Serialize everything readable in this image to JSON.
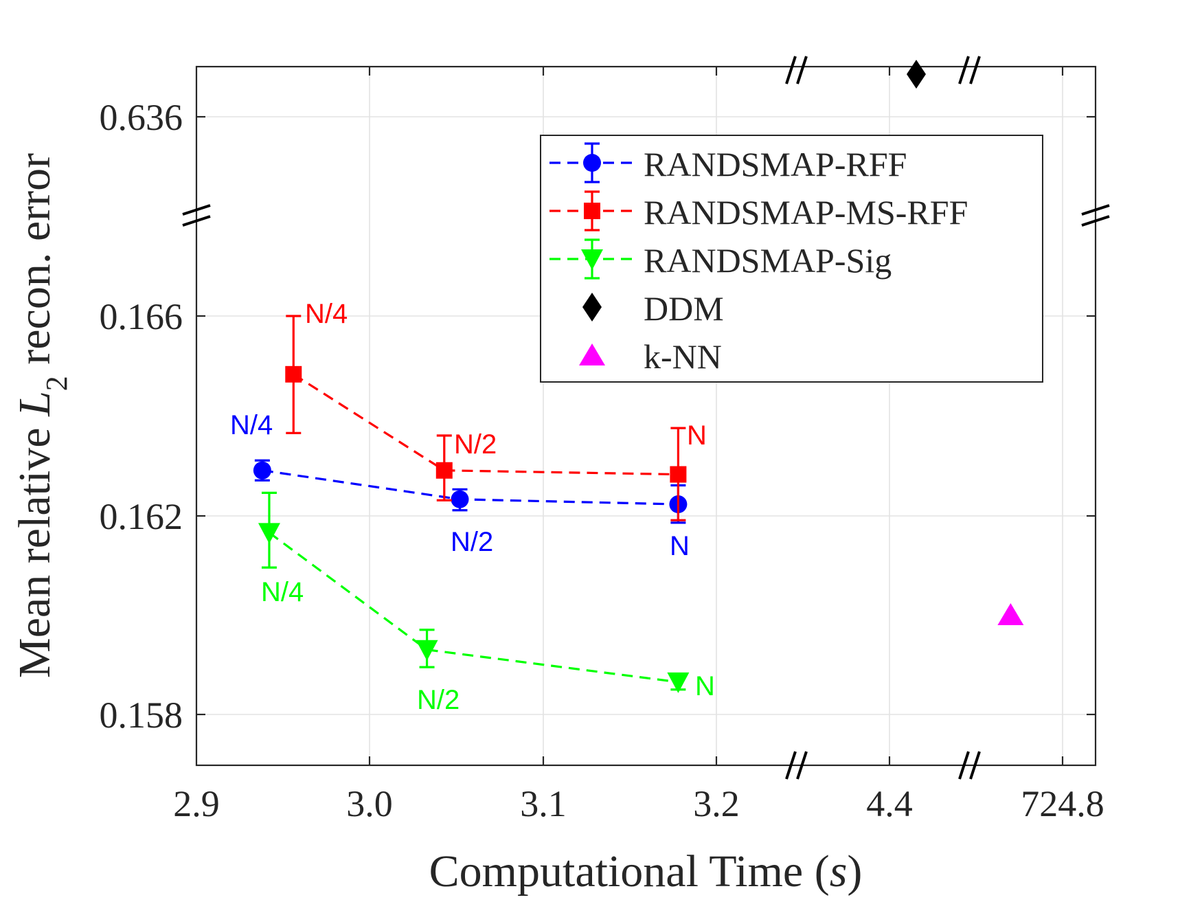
{
  "chart_data": {
    "type": "scatter",
    "xlabel": "Computational Time (s)",
    "xlabel_main": "Computational Time (",
    "xlabel_unit": "s",
    "xlabel_close": ")",
    "ylabel": "Mean relative L2 recon. error",
    "ylabel_pre": "Mean relative ",
    "ylabel_var": "L",
    "ylabel_sub": "2",
    "ylabel_post": " recon. error",
    "x_ticks": [
      "2.9",
      "3.0",
      "3.1",
      "3.2",
      "4.4",
      "724.8"
    ],
    "y_ticks": [
      "0.158",
      "0.162",
      "0.166",
      "0.636"
    ],
    "axis_breaks": {
      "x": [
        "3.2–4.4",
        "4.4–724.8"
      ],
      "y": [
        "0.166–0.636"
      ]
    },
    "grid": true,
    "legend_position": "top-right",
    "series": [
      {
        "name": "RANDSMAP-RFF",
        "color": "#0000ff",
        "marker": "circle",
        "line": "dashed",
        "points": [
          {
            "x": 2.938,
            "y": 0.1629,
            "err_low": 0.1627,
            "err_high": 0.1631,
            "label": "N/4"
          },
          {
            "x": 3.052,
            "y": 0.16232,
            "err_low": 0.1621,
            "err_high": 0.16252,
            "label": "N/2"
          },
          {
            "x": 3.178,
            "y": 0.16222,
            "err_low": 0.16185,
            "err_high": 0.1626,
            "label": "N"
          }
        ]
      },
      {
        "name": "RANDSMAP-MS-RFF",
        "color": "#ff0000",
        "marker": "square",
        "line": "dashed",
        "points": [
          {
            "x": 2.956,
            "y": 0.16483,
            "err_low": 0.16365,
            "err_high": 0.166,
            "label": "N/4"
          },
          {
            "x": 3.043,
            "y": 0.1629,
            "err_low": 0.1623,
            "err_high": 0.1636,
            "label": "N/2"
          },
          {
            "x": 3.178,
            "y": 0.16282,
            "err_low": 0.1619,
            "err_high": 0.16375,
            "label": "N"
          }
        ]
      },
      {
        "name": "RANDSMAP-Sig",
        "color": "#00ff00",
        "marker": "triangle-down",
        "line": "dashed",
        "points": [
          {
            "x": 2.942,
            "y": 0.16165,
            "err_low": 0.16095,
            "err_high": 0.16245,
            "label": "N/4"
          },
          {
            "x": 3.033,
            "y": 0.1593,
            "err_low": 0.15895,
            "err_high": 0.1597,
            "label": "N/2"
          },
          {
            "x": 3.178,
            "y": 0.15865,
            "err_low": 0.1585,
            "err_high": 0.1588,
            "label": "N"
          }
        ]
      }
    ],
    "single_points": [
      {
        "name": "DDM",
        "x": 4.55,
        "y": 0.64,
        "color": "#000000",
        "marker": "diamond"
      },
      {
        "name": "k-NN",
        "x": 700,
        "y": 0.16,
        "color": "#ff00ff",
        "marker": "triangle-up"
      }
    ]
  }
}
